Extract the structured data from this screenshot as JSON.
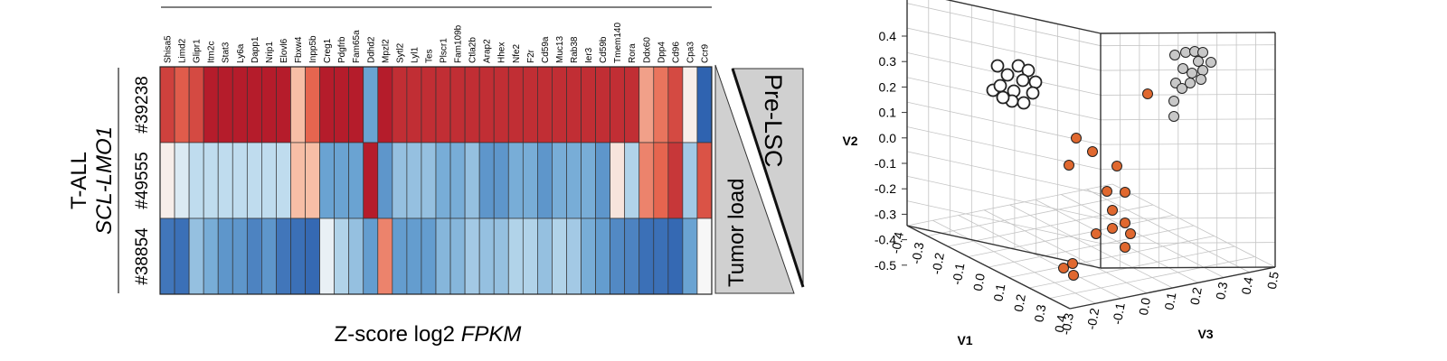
{
  "chart_data": [
    {
      "type": "heatmap",
      "xlabel": "Z-score log2 FPKM",
      "xlabel_parts": [
        "Z-score log2 ",
        "FPKM"
      ],
      "group_label": [
        "T-ALL",
        "SCL-LMO1"
      ],
      "genes": [
        "Shisa5",
        "Limd2",
        "Glipr1",
        "Itm2c",
        "Stat3",
        "Ly6a",
        "Dapp1",
        "Nrip1",
        "Elovl6",
        "Fbxw4",
        "Inpp5b",
        "Creg1",
        "Pdgfrb",
        "Fam65a",
        "Ddhd2",
        "Mpzl2",
        "Sytl2",
        "Lyl1",
        "Tes",
        "Plscr1",
        "Fam109b",
        "Ctla2b",
        "Arap2",
        "Hhex",
        "Nfe2",
        "F2r",
        "Cd59a",
        "Muc13",
        "Rab38",
        "Ier3",
        "Cd59b",
        "Tmem140",
        "Rora",
        "Ddx60",
        "Dpp4",
        "Cd96",
        "Cpa3",
        "Ccr9"
      ],
      "samples": [
        "#39238",
        "#49555",
        "#38854"
      ],
      "zscores": [
        [
          0.8,
          0.65,
          0.75,
          1,
          1,
          1,
          1,
          1,
          1,
          0.3,
          0.6,
          1,
          1,
          1,
          -0.5,
          1,
          0.9,
          0.9,
          0.9,
          0.9,
          0.9,
          0.9,
          0.9,
          0.9,
          0.9,
          0.9,
          0.9,
          0.9,
          0.9,
          0.9,
          0.9,
          0.9,
          0.9,
          0.4,
          0.55,
          0.75,
          0.05,
          -1
        ],
        [
          0.05,
          -0.1,
          -0.2,
          -0.2,
          -0.2,
          -0.2,
          -0.2,
          -0.2,
          -0.2,
          0.3,
          0.3,
          -0.5,
          -0.5,
          -0.5,
          1,
          -0.6,
          -0.35,
          -0.35,
          -0.35,
          -0.45,
          -0.45,
          -0.35,
          -0.6,
          -0.6,
          -0.45,
          -0.45,
          -0.6,
          -0.45,
          -0.45,
          -0.45,
          -0.6,
          0.1,
          -0.25,
          0.5,
          0.6,
          0.85,
          -0.3,
          0.7
        ],
        [
          -0.85,
          -0.9,
          -0.35,
          -0.45,
          -0.6,
          -0.6,
          -0.75,
          -0.6,
          -0.85,
          -0.9,
          -0.95,
          -0.05,
          -0.25,
          -0.35,
          -0.55,
          0.5,
          -0.55,
          -0.55,
          -0.55,
          -0.4,
          -0.4,
          -0.3,
          -0.35,
          -0.35,
          -0.25,
          -0.25,
          -0.35,
          -0.25,
          -0.3,
          -0.45,
          -0.55,
          -0.7,
          -0.75,
          -0.9,
          -0.9,
          -0.95,
          -0.5,
          0.0
        ]
      ],
      "side_labels": {
        "pre_lsc": "Pre-LSC",
        "tumor_load": "Tumor load"
      }
    },
    {
      "type": "scatter",
      "subtype": "3d",
      "axis_labels": {
        "x": "V1",
        "y": "V3",
        "z": "V2"
      },
      "x_ticks": [
        "-0.4",
        "-0.3",
        "-0.2",
        "-0.1",
        "0.0",
        "0.1",
        "0.2",
        "0.3",
        "0.4"
      ],
      "y_ticks": [
        "-0.3",
        "-0.2",
        "-0.1",
        "0.0",
        "0.1",
        "0.2",
        "0.3",
        "0.4",
        "0.5"
      ],
      "z_ticks": [
        "0.4",
        "0.3",
        "0.2",
        "0.1",
        "0.0",
        "-0.1",
        "-0.2",
        "-0.3",
        "-0.4",
        "-0.5"
      ],
      "zlim": [
        -0.5,
        0.45
      ],
      "series": [
        {
          "marker": "open",
          "color": "#ffffff",
          "points": [
            [
              -0.3,
              -0.28,
              0.3
            ],
            [
              -0.25,
              -0.22,
              0.26
            ],
            [
              -0.22,
              -0.15,
              0.29
            ],
            [
              -0.18,
              -0.1,
              0.27
            ],
            [
              -0.32,
              -0.3,
              0.25
            ],
            [
              -0.28,
              -0.18,
              0.23
            ],
            [
              -0.24,
              -0.1,
              0.22
            ],
            [
              -0.3,
              -0.25,
              0.2
            ],
            [
              -0.27,
              -0.16,
              0.18
            ],
            [
              -0.22,
              -0.05,
              0.17
            ],
            [
              -0.26,
              -0.12,
              0.14
            ],
            [
              -0.32,
              -0.2,
              0.15
            ],
            [
              -0.3,
              -0.14,
              0.12
            ]
          ]
        },
        {
          "marker": "filled",
          "color": "#c8c8c8",
          "points": [
            [
              0.28,
              0.42,
              0.33
            ],
            [
              0.3,
              0.44,
              0.3
            ],
            [
              0.27,
              0.4,
              0.29
            ],
            [
              0.32,
              0.47,
              0.31
            ],
            [
              0.26,
              0.35,
              0.27
            ],
            [
              0.3,
              0.43,
              0.25
            ],
            [
              0.24,
              0.32,
              0.24
            ],
            [
              0.28,
              0.4,
              0.22
            ],
            [
              0.22,
              0.3,
              0.2
            ],
            [
              0.25,
              0.36,
              0.18
            ],
            [
              0.2,
              0.28,
              0.16
            ],
            [
              0.18,
              0.3,
              0.11
            ],
            [
              0.16,
              0.3,
              0.1
            ],
            [
              0.22,
              0.37,
              0.28
            ]
          ]
        },
        {
          "marker": "filled",
          "color": "#e0682f",
          "points": [
            [
              0.05,
              0.2,
              0.13
            ],
            [
              -0.05,
              -0.02,
              -0.02
            ],
            [
              0.05,
              -0.02,
              -0.07
            ],
            [
              -0.08,
              0.0,
              -0.12
            ],
            [
              0.05,
              0.05,
              -0.12
            ],
            [
              0.02,
              0.0,
              -0.24
            ],
            [
              0.05,
              0.12,
              -0.22
            ],
            [
              0.03,
              0.08,
              -0.3
            ],
            [
              0.06,
              0.14,
              -0.34
            ],
            [
              0.04,
              0.05,
              -0.35
            ],
            [
              0.06,
              0.16,
              -0.39
            ],
            [
              -0.02,
              0.0,
              -0.38
            ],
            [
              0.1,
              0.12,
              -0.46
            ],
            [
              -0.08,
              -0.1,
              -0.49
            ],
            [
              -0.08,
              -0.1,
              -0.52
            ],
            [
              -0.1,
              -0.12,
              -0.53
            ]
          ]
        }
      ]
    }
  ]
}
